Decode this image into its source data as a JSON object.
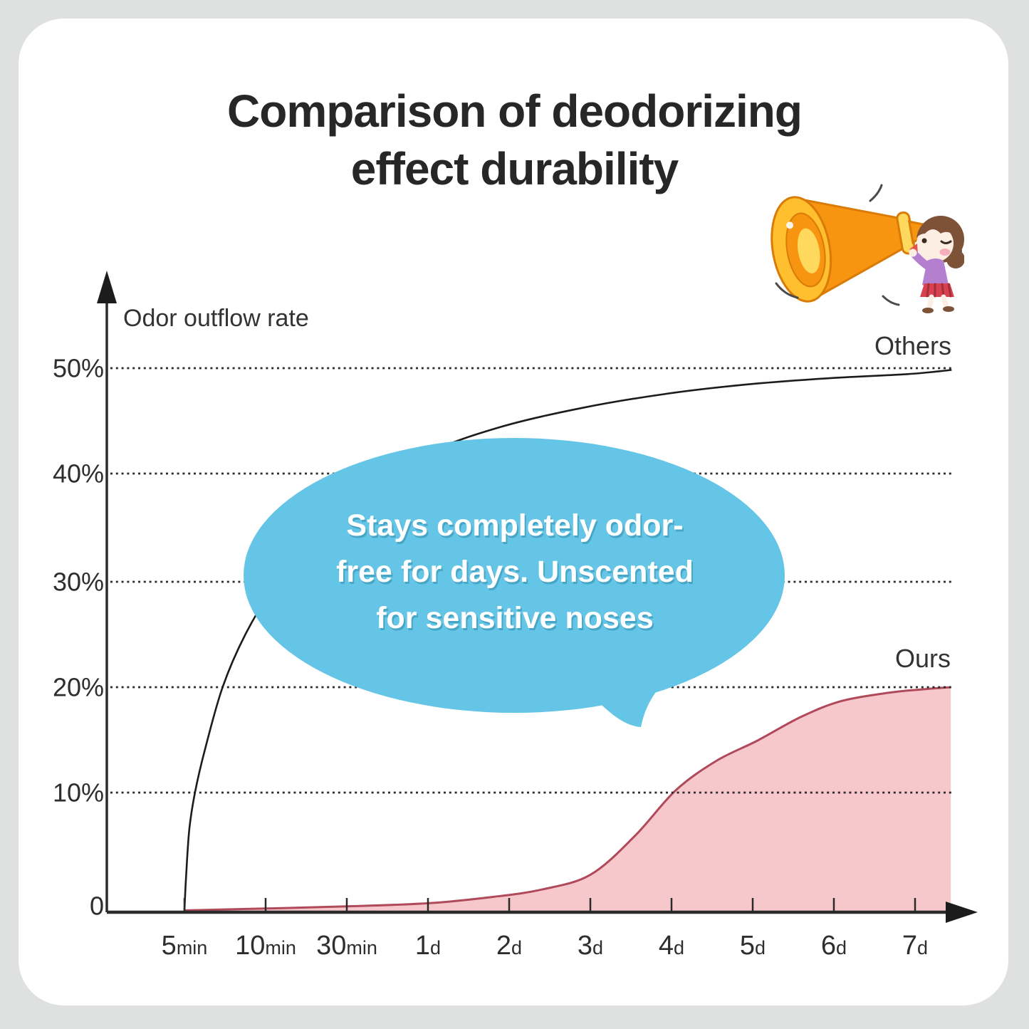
{
  "page": {
    "background_color": "#dfe1e0",
    "card_color": "#ffffff"
  },
  "title": {
    "line1": "Comparison of deodorizing",
    "line2": "effect durability",
    "color": "#272727"
  },
  "colors": {
    "others_line": "#1c1c1c",
    "ours_fill": "#f6c8cc",
    "ours_stroke": "#b04a5a",
    "bubble": "#64c5e6",
    "axis": "#2b2b2b",
    "gridline": "#2a2a2a"
  },
  "labels": {
    "ylabel": "Odor outflow rate",
    "others": "Others",
    "ours": "Ours"
  },
  "chart_data": {
    "type": "line",
    "title": "Comparison of deodorizing effect durability",
    "ylabel": "Odor outflow rate",
    "xlabel": "",
    "grid": "dotted horizontal gridlines at 10%,20%,30%,40%,50%",
    "legend_position": "inline labels at right of each curve",
    "ylim": [
      0,
      55
    ],
    "x_categories": [
      "5min",
      "10min",
      "30min",
      "1d",
      "2d",
      "3d",
      "4d",
      "5d",
      "6d",
      "7d"
    ],
    "x_ticks": [
      {
        "num": "5",
        "unit": "min"
      },
      {
        "num": "10",
        "unit": "min"
      },
      {
        "num": "30",
        "unit": "min"
      },
      {
        "num": "1",
        "unit": "d"
      },
      {
        "num": "2",
        "unit": "d"
      },
      {
        "num": "3",
        "unit": "d"
      },
      {
        "num": "4",
        "unit": "d"
      },
      {
        "num": "5",
        "unit": "d"
      },
      {
        "num": "6",
        "unit": "d"
      },
      {
        "num": "7",
        "unit": "d"
      }
    ],
    "y_ticks": [
      "50%",
      "40%",
      "30%",
      "20%",
      "10%",
      "0"
    ],
    "series": [
      {
        "name": "Others",
        "style": "line",
        "approx_values_at_categories_pct": [
          10,
          29,
          40,
          43,
          45,
          47,
          48,
          48.8,
          49.4,
          50
        ],
        "points_idx_pct": [
          [
            0,
            -1.2
          ],
          [
            0.02,
            2
          ],
          [
            0.06,
            6.5
          ],
          [
            0.13,
            10
          ],
          [
            0.25,
            14
          ],
          [
            0.47,
            20
          ],
          [
            0.75,
            25
          ],
          [
            1.1,
            29.5
          ],
          [
            1.6,
            34.3
          ],
          [
            2.2,
            38.3
          ],
          [
            3.0,
            42.2
          ],
          [
            3.9,
            44.7
          ],
          [
            4.9,
            46.5
          ],
          [
            5.9,
            47.8
          ],
          [
            6.9,
            48.7
          ],
          [
            7.9,
            49.3
          ],
          [
            8.9,
            49.7
          ],
          [
            9.45,
            50.1
          ]
        ]
      },
      {
        "name": "Ours",
        "style": "area",
        "approx_values_at_categories_pct": [
          0,
          0,
          0,
          0,
          0.5,
          2.2,
          10,
          14.7,
          18.6,
          20
        ],
        "points_idx_pct": [
          [
            0,
            -1.2
          ],
          [
            1,
            -1.0
          ],
          [
            2,
            -0.8
          ],
          [
            3,
            -0.5
          ],
          [
            3.8,
            0.1
          ],
          [
            4.4,
            0.8
          ],
          [
            5,
            2.2
          ],
          [
            5.55,
            5.9
          ],
          [
            6.05,
            10.2
          ],
          [
            6.55,
            13.0
          ],
          [
            7.05,
            14.9
          ],
          [
            7.6,
            17.2
          ],
          [
            8.1,
            18.7
          ],
          [
            8.7,
            19.5
          ],
          [
            9.1,
            19.8
          ],
          [
            9.44,
            20
          ]
        ]
      }
    ],
    "annotation": {
      "lines": [
        "Stays completely odor-",
        "free for days. Unscented",
        "for sensitive noses"
      ],
      "bubble_color": "#64c5e6",
      "text_color": "#ffffff"
    }
  },
  "illustration": {
    "name": "girl-shouting-into-megaphone",
    "megaphone_color": "#f79410",
    "megaphone_rim_color": "#ffbf2e",
    "band_color": "#ffd95e",
    "hair_color": "#7d5236",
    "skin_color": "#fdeee4",
    "sweater_color": "#b57fd0",
    "skirt_color": "#d9414f"
  }
}
